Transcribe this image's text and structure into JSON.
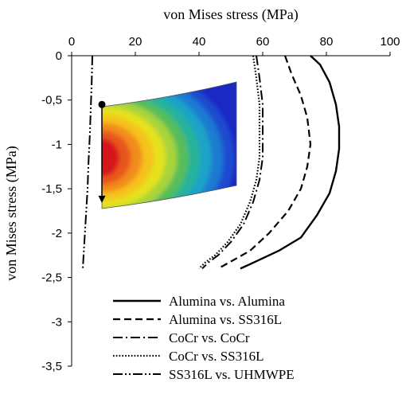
{
  "chart_data": {
    "type": "line",
    "xlabel": "von Mises stress (MPa)",
    "ylabel": "von Mises stress (MPa)",
    "xlim": [
      0,
      100
    ],
    "ylim": [
      -3.5,
      0
    ],
    "x_ticks": [
      0,
      20,
      40,
      60,
      80,
      100
    ],
    "y_ticks": [
      0,
      -0.5,
      -1,
      -1.5,
      -2,
      -2.5,
      -3,
      -3.5
    ],
    "x_tick_labels": [
      "0",
      "20",
      "40",
      "60",
      "80",
      "100"
    ],
    "y_tick_labels": [
      "0",
      "-0,5",
      "-1",
      "-1,5",
      "-2",
      "-2,5",
      "-3",
      "-3,5"
    ],
    "x_axis_position": "top",
    "grid": false,
    "legend_position": "bottom-center",
    "series": [
      {
        "name": "Alumina vs. Alumina",
        "style": "solid",
        "x": [
          75,
          78,
          81,
          83,
          84,
          84,
          83,
          81,
          77,
          72,
          65,
          59,
          56,
          53
        ],
        "y": [
          0,
          -0.1,
          -0.3,
          -0.55,
          -0.8,
          -1.05,
          -1.3,
          -1.55,
          -1.8,
          -2.05,
          -2.2,
          -2.3,
          -2.35,
          -2.4
        ]
      },
      {
        "name": "Alumina vs. SS316L",
        "style": "dash",
        "x": [
          67,
          69,
          72,
          74,
          75,
          74,
          72,
          68,
          62,
          56,
          51,
          48,
          46
        ],
        "y": [
          0,
          -0.2,
          -0.45,
          -0.7,
          -1.0,
          -1.25,
          -1.5,
          -1.75,
          -2.0,
          -2.2,
          -2.3,
          -2.36,
          -2.4
        ]
      },
      {
        "name": "CoCr vs. CoCr",
        "style": "dashdot",
        "x": [
          58,
          59,
          60,
          60,
          60,
          59,
          57,
          54,
          50,
          46,
          43,
          41
        ],
        "y": [
          0,
          -0.25,
          -0.55,
          -0.85,
          -1.15,
          -1.4,
          -1.65,
          -1.9,
          -2.1,
          -2.25,
          -2.33,
          -2.4
        ]
      },
      {
        "name": "CoCr vs. SS316L",
        "style": "dot",
        "x": [
          57,
          58,
          59,
          59,
          59,
          58,
          56,
          53,
          49,
          45,
          42,
          40
        ],
        "y": [
          0,
          -0.25,
          -0.55,
          -0.85,
          -1.15,
          -1.4,
          -1.65,
          -1.9,
          -2.1,
          -2.25,
          -2.33,
          -2.4
        ]
      },
      {
        "name": "SS316L vs. UHMWPE",
        "style": "dashdotdot",
        "x": [
          6.5,
          6.3,
          6.0,
          5.7,
          5.3,
          5.0,
          4.5,
          4.0,
          3.5
        ],
        "y": [
          0,
          -0.3,
          -0.6,
          -0.9,
          -1.2,
          -1.5,
          -1.8,
          -2.1,
          -2.4
        ]
      }
    ],
    "inset": {
      "type": "stress-contour-image",
      "colormap": [
        "#d7191c",
        "#e8561a",
        "#f28c1e",
        "#f6c21b",
        "#e5e21a",
        "#a8d43a",
        "#57bd5a",
        "#27b39a",
        "#1aa3c7",
        "#1a7ad1",
        "#1a4bd0",
        "#1a28c4"
      ],
      "marker_top_y": -0.55,
      "marker_bottom_y": -1.65
    }
  }
}
